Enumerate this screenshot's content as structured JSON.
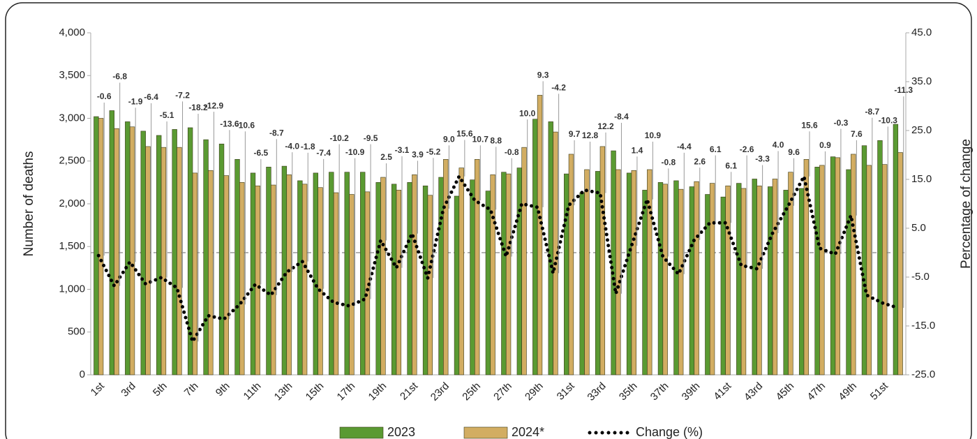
{
  "chart_data": {
    "type": "bar",
    "categories": [
      "1st",
      null,
      "3rd",
      null,
      "5th",
      null,
      "7th",
      null,
      "9th",
      null,
      "11th",
      null,
      "13th",
      null,
      "15th",
      null,
      "17th",
      null,
      "19th",
      null,
      "21st",
      null,
      "23rd",
      null,
      "25th",
      null,
      "27th",
      null,
      "29th",
      null,
      "31st",
      null,
      "33rd",
      null,
      "35th",
      null,
      "37th",
      null,
      "39th",
      null,
      "41st",
      null,
      "43rd",
      null,
      "45th",
      null,
      "47th",
      null,
      "49th",
      null,
      "51st",
      null
    ],
    "series": [
      {
        "name": "2023",
        "color": "#5a9a32",
        "values": [
          3020,
          3090,
          2960,
          2850,
          2800,
          2870,
          2890,
          2750,
          2700,
          2520,
          2360,
          2430,
          2440,
          2270,
          2360,
          2370,
          2370,
          2370,
          2250,
          2230,
          2250,
          2210,
          2310,
          2090,
          2280,
          2150,
          2370,
          2420,
          2990,
          2960,
          2350,
          2130,
          2380,
          2620,
          2360,
          2160,
          2250,
          2270,
          2200,
          2110,
          2080,
          2240,
          2290,
          2200,
          2160,
          2180,
          2430,
          2550,
          2400,
          2680,
          2740,
          2930
        ]
      },
      {
        "name": "2024*",
        "color": "#d2ad62",
        "values": [
          3000,
          2880,
          2900,
          2670,
          2660,
          2660,
          2360,
          2390,
          2330,
          2250,
          2210,
          2220,
          2340,
          2230,
          2190,
          2130,
          2110,
          2140,
          2310,
          2160,
          2340,
          2100,
          2520,
          2420,
          2520,
          2340,
          2350,
          2660,
          3270,
          2840,
          2580,
          2400,
          2670,
          2400,
          2390,
          2400,
          2230,
          2170,
          2260,
          2240,
          2210,
          2180,
          2210,
          2290,
          2370,
          2520,
          2450,
          2540,
          2580,
          2450,
          2460,
          2600
        ]
      },
      {
        "name": "Change (%)",
        "color": "#000000",
        "type": "line",
        "axis": "y2",
        "values": [
          -0.6,
          -6.8,
          -1.9,
          -6.4,
          -5.1,
          -7.2,
          -18.2,
          -12.9,
          -13.6,
          -10.6,
          -6.5,
          -8.7,
          -4,
          -1.8,
          -7.4,
          -10.2,
          -10.9,
          -9.5,
          2.5,
          -3.1,
          3.9,
          -5.2,
          9,
          15.6,
          10.7,
          8.8,
          -0.8,
          10,
          9.3,
          -4.2,
          9.7,
          12.8,
          12.2,
          -8.4,
          1.4,
          10.9,
          -0.8,
          -4.4,
          2.6,
          6.1,
          6.1,
          -2.6,
          -3.3,
          4,
          9.6,
          15.6,
          0.9,
          -0.3,
          7.6,
          -8.7,
          -10.3,
          -11.3
        ],
        "value_labels": [
          "-0.6",
          "-6.8",
          "-1.9",
          "-6.4",
          "-5.1",
          "-7.2",
          "-18.2",
          "-12.9",
          "-13.6",
          "-10.6",
          "-6.5",
          "-8.7",
          "-4.0",
          "-1.8",
          "-7.4",
          "-10.2",
          "-10.9",
          "-9.5",
          "2.5",
          "-3.1",
          "3.9",
          "-5.2",
          "9.0",
          "15.6",
          "10.7",
          "8.8",
          "-0.8",
          "10.0",
          "9.3",
          "-4.2",
          "9.7",
          "12.8",
          "12.2",
          "-8.4",
          "1.4",
          "10.9",
          "-0.8",
          "-4.4",
          "2.6",
          "6.1",
          "6.1",
          "-2.6",
          "-3.3",
          "4.0",
          "9.6",
          "15.6",
          "0.9",
          "-0.3",
          "7.6",
          "-8.7",
          "-10.3",
          "-11.3"
        ]
      }
    ],
    "y_label": "Number of deaths",
    "y2_label": "Percentage of change",
    "ylim": [
      0,
      4000
    ],
    "yticks": [
      0,
      500,
      {
        "value": 1000,
        "label": "1,000"
      },
      {
        "value": 1500,
        "label": "1,500"
      },
      {
        "value": 2000,
        "label": "2,000"
      },
      {
        "value": 2500,
        "label": "2,500"
      },
      {
        "value": 3000,
        "label": "3,000"
      },
      {
        "value": 3500,
        "label": "3,500"
      },
      {
        "value": 4000,
        "label": "4,000"
      }
    ],
    "y2lim": [
      -25,
      45
    ],
    "y2ticks": [
      {
        "value": -25,
        "label": "-25.0"
      },
      {
        "value": -15,
        "label": "-15.0"
      },
      {
        "value": -5,
        "label": "-5.0"
      },
      {
        "value": 5,
        "label": "5.0"
      },
      {
        "value": 15,
        "label": "15.0"
      },
      {
        "value": 25,
        "label": "25.0"
      },
      {
        "value": 35,
        "label": "35.0"
      },
      {
        "value": 45,
        "label": "45.0"
      }
    ],
    "legend": "bottom"
  }
}
